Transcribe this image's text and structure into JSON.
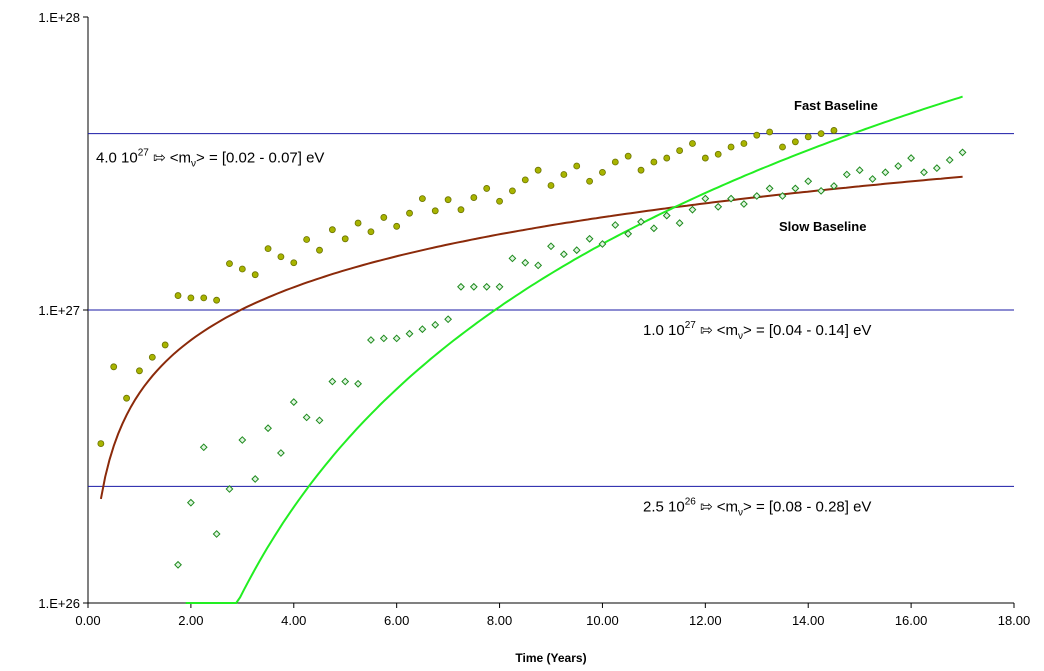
{
  "chart_data": {
    "type": "scatter",
    "xlabel": "Time (Years)",
    "ylabel": "",
    "xlim": [
      0,
      18
    ],
    "ylim": [
      1e+26,
      1e+28
    ],
    "yscale": "log",
    "x_ticks": [
      "0.00",
      "2.00",
      "4.00",
      "6.00",
      "8.00",
      "10.00",
      "12.00",
      "14.00",
      "16.00",
      "18.00"
    ],
    "y_ticks": [
      {
        "value": 1e+28,
        "label": "1.E+28"
      },
      {
        "value": 1e+27,
        "label": "1.E+27"
      },
      {
        "value": 1e+26,
        "label": "1.E+26"
      }
    ],
    "grid": false,
    "series": [
      {
        "name": "Fast Baseline",
        "label_text": "Fast Baseline",
        "marker": "circle",
        "marker_color": "#a8b400",
        "marker_edge": "#6b7300",
        "fit_color": "#8b2a0a",
        "fit": {
          "x_start": 0.25,
          "x_end": 17.0,
          "a": 26.7165,
          "b": 0.6
        },
        "points": [
          [
            0.25,
            3.5e+26
          ],
          [
            0.5,
            6.4e+26
          ],
          [
            0.75,
            5e+26
          ],
          [
            1.0,
            6.2e+26
          ],
          [
            1.25,
            6.9e+26
          ],
          [
            1.5,
            7.6e+26
          ],
          [
            1.75,
            1.12e+27
          ],
          [
            2.0,
            1.1e+27
          ],
          [
            2.25,
            1.1e+27
          ],
          [
            2.5,
            1.08e+27
          ],
          [
            2.75,
            1.44e+27
          ],
          [
            3.0,
            1.38e+27
          ],
          [
            3.25,
            1.32e+27
          ],
          [
            3.5,
            1.62e+27
          ],
          [
            3.75,
            1.52e+27
          ],
          [
            4.0,
            1.45e+27
          ],
          [
            4.25,
            1.74e+27
          ],
          [
            4.5,
            1.6e+27
          ],
          [
            4.75,
            1.88e+27
          ],
          [
            5.0,
            1.75e+27
          ],
          [
            5.25,
            1.98e+27
          ],
          [
            5.5,
            1.85e+27
          ],
          [
            5.75,
            2.07e+27
          ],
          [
            6.0,
            1.93e+27
          ],
          [
            6.25,
            2.14e+27
          ],
          [
            6.5,
            2.4e+27
          ],
          [
            6.75,
            2.18e+27
          ],
          [
            7.0,
            2.38e+27
          ],
          [
            7.25,
            2.2e+27
          ],
          [
            7.5,
            2.42e+27
          ],
          [
            7.75,
            2.6e+27
          ],
          [
            8.0,
            2.35e+27
          ],
          [
            8.25,
            2.55e+27
          ],
          [
            8.5,
            2.78e+27
          ],
          [
            8.75,
            3e+27
          ],
          [
            9.0,
            2.66e+27
          ],
          [
            9.25,
            2.9e+27
          ],
          [
            9.5,
            3.1e+27
          ],
          [
            9.75,
            2.75e+27
          ],
          [
            10.0,
            2.95e+27
          ],
          [
            10.25,
            3.2e+27
          ],
          [
            10.5,
            3.35e+27
          ],
          [
            10.75,
            3e+27
          ],
          [
            11.0,
            3.2e+27
          ],
          [
            11.25,
            3.3e+27
          ],
          [
            11.5,
            3.5e+27
          ],
          [
            11.75,
            3.7e+27
          ],
          [
            12.0,
            3.3e+27
          ],
          [
            12.25,
            3.4e+27
          ],
          [
            12.5,
            3.6e+27
          ],
          [
            12.75,
            3.7e+27
          ],
          [
            13.0,
            3.95e+27
          ],
          [
            13.25,
            4.05e+27
          ],
          [
            13.5,
            3.6e+27
          ],
          [
            13.75,
            3.75e+27
          ],
          [
            14.0,
            3.9e+27
          ],
          [
            14.25,
            4e+27
          ],
          [
            14.5,
            4.1e+27
          ]
        ]
      },
      {
        "name": "Slow Baseline",
        "label_text": "Slow Baseline",
        "marker": "diamond",
        "marker_color": "#5fd35f",
        "marker_edge": "#1e8a1e",
        "fit_color": "#22ee22",
        "fit": {
          "x_start": 1.9,
          "x_end": 17.0,
          "a": 24.7755,
          "b": 2.45,
          "c": 0.9
        },
        "points": [
          [
            1.75,
            1.35e+26
          ],
          [
            2.0,
            2.2e+26
          ],
          [
            2.25,
            3.4e+26
          ],
          [
            2.5,
            1.72e+26
          ],
          [
            2.75,
            2.45e+26
          ],
          [
            3.0,
            3.6e+26
          ],
          [
            3.25,
            2.65e+26
          ],
          [
            3.5,
            3.95e+26
          ],
          [
            3.75,
            3.25e+26
          ],
          [
            4.0,
            4.85e+26
          ],
          [
            4.25,
            4.3e+26
          ],
          [
            4.5,
            4.2e+26
          ],
          [
            4.75,
            5.7e+26
          ],
          [
            5.0,
            5.7e+26
          ],
          [
            5.25,
            5.6e+26
          ],
          [
            5.5,
            7.9e+26
          ],
          [
            5.75,
            8e+26
          ],
          [
            6.0,
            8e+26
          ],
          [
            6.25,
            8.3e+26
          ],
          [
            6.5,
            8.6e+26
          ],
          [
            6.75,
            8.9e+26
          ],
          [
            7.0,
            9.3e+26
          ],
          [
            7.25,
            1.2e+27
          ],
          [
            7.5,
            1.2e+27
          ],
          [
            7.75,
            1.2e+27
          ],
          [
            8.0,
            1.2e+27
          ],
          [
            8.25,
            1.5e+27
          ],
          [
            8.5,
            1.45e+27
          ],
          [
            8.75,
            1.42e+27
          ],
          [
            9.0,
            1.65e+27
          ],
          [
            9.25,
            1.55e+27
          ],
          [
            9.5,
            1.6e+27
          ],
          [
            9.75,
            1.75e+27
          ],
          [
            10.0,
            1.68e+27
          ],
          [
            10.25,
            1.95e+27
          ],
          [
            10.5,
            1.82e+27
          ],
          [
            10.75,
            2e+27
          ],
          [
            11.0,
            1.9e+27
          ],
          [
            11.25,
            2.1e+27
          ],
          [
            11.5,
            1.98e+27
          ],
          [
            11.75,
            2.2e+27
          ],
          [
            12.0,
            2.4e+27
          ],
          [
            12.25,
            2.25e+27
          ],
          [
            12.5,
            2.4e+27
          ],
          [
            12.75,
            2.3e+27
          ],
          [
            13.0,
            2.45e+27
          ],
          [
            13.25,
            2.6e+27
          ],
          [
            13.5,
            2.45e+27
          ],
          [
            13.75,
            2.6e+27
          ],
          [
            14.0,
            2.75e+27
          ],
          [
            14.25,
            2.55e+27
          ],
          [
            14.5,
            2.65e+27
          ],
          [
            14.75,
            2.9e+27
          ],
          [
            15.0,
            3e+27
          ],
          [
            15.25,
            2.8e+27
          ],
          [
            15.5,
            2.95e+27
          ],
          [
            15.75,
            3.1e+27
          ],
          [
            16.0,
            3.3e+27
          ],
          [
            16.25,
            2.95e+27
          ],
          [
            16.5,
            3.05e+27
          ],
          [
            16.75,
            3.25e+27
          ],
          [
            17.0,
            3.45e+27
          ]
        ]
      }
    ],
    "reference_lines": [
      {
        "y": 4e+27,
        "color": "#1a1aa6",
        "mantissa": "4.0 10",
        "exp": "27",
        "arrow": "⇰",
        "mid": "<m",
        "sub": "ν",
        "range": "> = [0.02 - 0.07] eV"
      },
      {
        "y": 1e+27,
        "color": "#1a1aa6",
        "mantissa": "1.0 10",
        "exp": "27",
        "arrow": "⇰",
        "mid": "<m",
        "sub": "ν",
        "range": "> = [0.04 - 0.14] eV"
      },
      {
        "y": 2.5e+26,
        "color": "#1a1aa6",
        "mantissa": "2.5 10",
        "exp": "26",
        "arrow": "⇰",
        "mid": "<m",
        "sub": "ν",
        "range": "> = [0.08 - 0.28] eV"
      }
    ]
  }
}
